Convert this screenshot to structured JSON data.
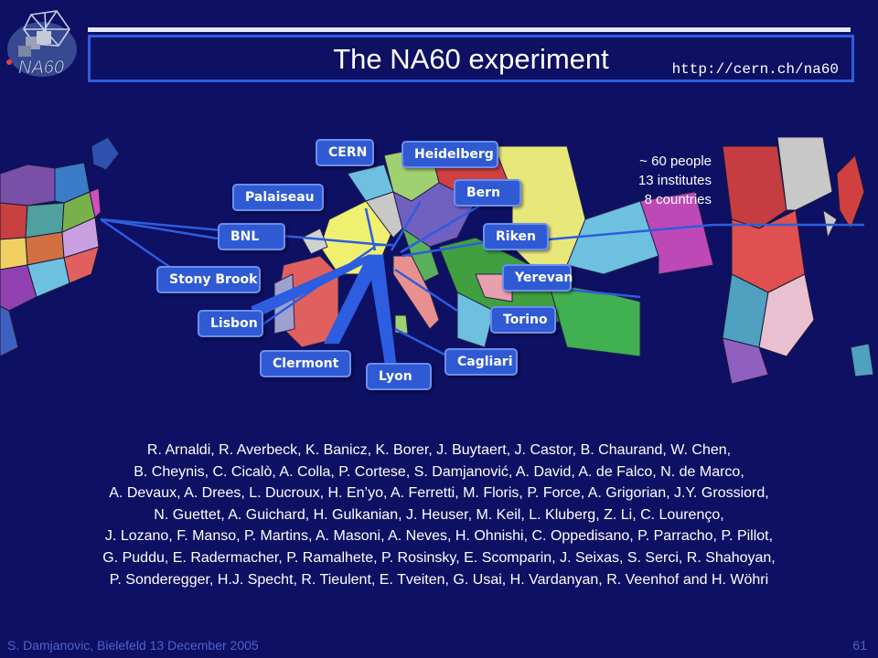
{
  "slide": {
    "title": "The NA60 experiment",
    "url": "http://cern.ch/na60",
    "logo_text": "NA60"
  },
  "stats": {
    "people": "~ 60 people",
    "institutes": "13 institutes",
    "countries": "8 countries"
  },
  "institutes": [
    {
      "id": "cern",
      "label": "CERN"
    },
    {
      "id": "heidelberg",
      "label": "Heidelberg"
    },
    {
      "id": "palaiseau",
      "label": "Palaiseau"
    },
    {
      "id": "bern",
      "label": "Bern"
    },
    {
      "id": "bnl",
      "label": "BNL"
    },
    {
      "id": "riken",
      "label": "Riken"
    },
    {
      "id": "stony-brook",
      "label": "Stony Brook"
    },
    {
      "id": "yerevan",
      "label": "Yerevan"
    },
    {
      "id": "lisbon",
      "label": "Lisbon"
    },
    {
      "id": "torino",
      "label": "Torino"
    },
    {
      "id": "clermont",
      "label": "Clermont"
    },
    {
      "id": "cagliari",
      "label": "Cagliari"
    },
    {
      "id": "lyon",
      "label": "Lyon"
    }
  ],
  "authors": [
    "R. Arnaldi, R. Averbeck, K. Banicz, K. Borer, J. Buytaert, J. Castor, B. Chaurand, W. Chen,",
    "B. Cheynis, C. Cicalò, A. Colla, P. Cortese, S. Damjanović, A. David, A. de Falco, N. de Marco,",
    "A. Devaux, A. Drees, L. Ducroux, H. En’yo, A. Ferretti, M. Floris, P. Force, A. Grigorian, J.Y. Grossiord,",
    "N. Guettet, A. Guichard, H. Gulkanian, J. Heuser, M. Keil, L. Kluberg, Z. Li, C. Lourenço,",
    "J. Lozano, F. Manso, P. Martins, A. Masoni, A. Neves, H. Ohnishi, C. Oppedisano, P. Parracho, P. Pillot,",
    "G. Puddu, E. Radermacher, P. Ramalhete, P. Rosinsky, E. Scomparin, J. Seixas, S. Serci, R. Shahoyan,",
    "P. Sonderegger, H.J. Specht, R. Tieulent, E. Tveiten, G. Usai, H. Vardanyan, R. Veenhof and H. Wöhri"
  ],
  "footer": {
    "presenter": "S. Damjanovic, Bielefeld 13 December 2005",
    "page_number": "61"
  },
  "colors": {
    "background": "#0d1063",
    "title_border": "#2d5de0",
    "label_fill": "#2f5ad3",
    "footer_text": "#4e63c8"
  }
}
